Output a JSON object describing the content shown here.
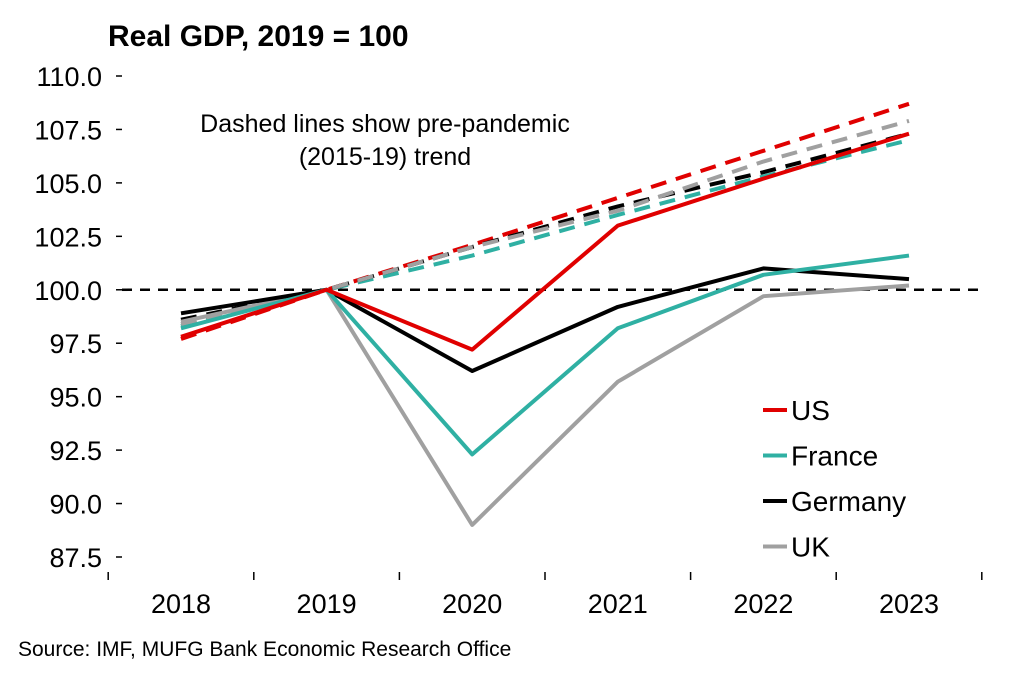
{
  "chart_data": {
    "type": "line",
    "title": "Real GDP, 2019 = 100",
    "annotation": [
      "Dashed lines show pre-pandemic",
      "(2015-19) trend"
    ],
    "source": "Source: IMF, MUFG Bank Economic Research Office",
    "categories": [
      "2018",
      "2019",
      "2020",
      "2021",
      "2022",
      "2023"
    ],
    "ylim": [
      87.5,
      110.0
    ],
    "yticks": [
      "110.0",
      "107.5",
      "105.0",
      "102.5",
      "100.0",
      "97.5",
      "95.0",
      "92.5",
      "90.0",
      "87.5"
    ],
    "reference_line": 100.0,
    "series": [
      {
        "name": "US",
        "color": "#e00000",
        "values": [
          97.8,
          100.0,
          97.2,
          103.0,
          105.2,
          107.3
        ],
        "trend": [
          97.7,
          100.0,
          102.1,
          104.3,
          106.5,
          108.7
        ]
      },
      {
        "name": "France",
        "color": "#2fb0a3",
        "values": [
          98.2,
          100.0,
          92.3,
          98.2,
          100.7,
          101.6
        ],
        "trend": [
          98.3,
          100.0,
          101.6,
          103.5,
          105.3,
          107.0
        ]
      },
      {
        "name": "Germany",
        "color": "#000000",
        "values": [
          98.9,
          100.0,
          96.2,
          99.2,
          101.0,
          100.5
        ],
        "trend": [
          98.6,
          100.0,
          102.0,
          103.9,
          105.5,
          107.3
        ]
      },
      {
        "name": "UK",
        "color": "#a0a0a0",
        "values": [
          98.5,
          100.0,
          89.0,
          95.7,
          99.7,
          100.2
        ],
        "trend": [
          98.4,
          100.0,
          102.0,
          103.7,
          106.0,
          107.9
        ]
      }
    ],
    "legend_position": "bottom-right",
    "grid": false
  }
}
